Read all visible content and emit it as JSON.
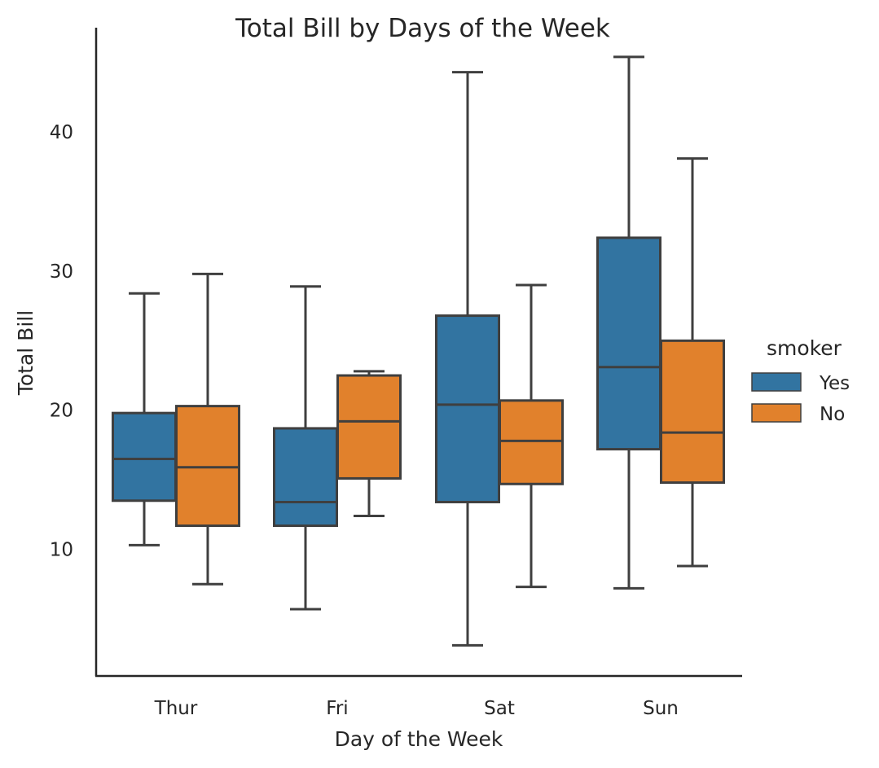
{
  "chart_data": {
    "type": "box",
    "title": "Total Bill by Days of the Week",
    "xlabel": "Day of the Week",
    "ylabel": "Total Bill",
    "categories": [
      "Thur",
      "Fri",
      "Sat",
      "Sun"
    ],
    "ylim": [
      0.9,
      47.5
    ],
    "yticks": [
      10,
      20,
      30,
      40
    ],
    "legend": {
      "title": "smoker",
      "placement": "center-right"
    },
    "series": [
      {
        "name": "Yes",
        "color": "#3274a1",
        "boxes": [
          {
            "whisker_low": 10.3,
            "q1": 13.5,
            "median": 16.5,
            "q3": 19.8,
            "whisker_high": 28.4
          },
          {
            "whisker_low": 5.7,
            "q1": 11.7,
            "median": 13.4,
            "q3": 18.7,
            "whisker_high": 28.9
          },
          {
            "whisker_low": 3.1,
            "q1": 13.4,
            "median": 20.4,
            "q3": 26.8,
            "whisker_high": 44.3
          },
          {
            "whisker_low": 7.2,
            "q1": 17.2,
            "median": 23.1,
            "q3": 32.4,
            "whisker_high": 45.4
          }
        ]
      },
      {
        "name": "No",
        "color": "#e1812c",
        "boxes": [
          {
            "whisker_low": 7.5,
            "q1": 11.7,
            "median": 15.9,
            "q3": 20.3,
            "whisker_high": 29.8
          },
          {
            "whisker_low": 12.4,
            "q1": 15.1,
            "median": 19.2,
            "q3": 22.5,
            "whisker_high": 22.8
          },
          {
            "whisker_low": 7.3,
            "q1": 14.7,
            "median": 17.8,
            "q3": 20.7,
            "whisker_high": 29.0
          },
          {
            "whisker_low": 8.8,
            "q1": 14.8,
            "median": 18.4,
            "q3": 25.0,
            "whisker_high": 38.1
          }
        ]
      }
    ]
  }
}
